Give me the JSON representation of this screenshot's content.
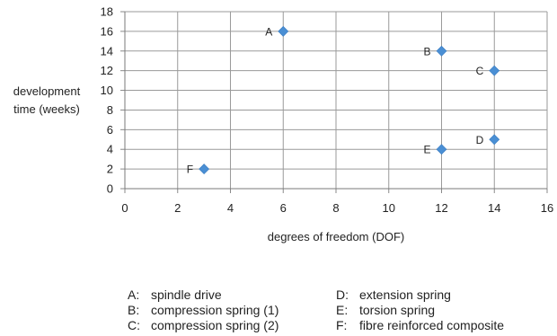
{
  "chart_data": {
    "type": "scatter",
    "title": "",
    "xlabel": "degrees of freedom (DOF)",
    "ylabel": [
      "development",
      "time (weeks)"
    ],
    "xlim": [
      0,
      16
    ],
    "ylim": [
      0,
      18
    ],
    "xticks": [
      0,
      2,
      4,
      6,
      8,
      10,
      12,
      14,
      16
    ],
    "yticks": [
      0,
      2,
      4,
      6,
      8,
      10,
      12,
      14,
      16,
      18
    ],
    "grid": true,
    "marker": "diamond",
    "color": "#4a8fd4",
    "points": [
      {
        "label": "A",
        "x": 6,
        "y": 16
      },
      {
        "label": "B",
        "x": 12,
        "y": 14
      },
      {
        "label": "C",
        "x": 14,
        "y": 12
      },
      {
        "label": "D",
        "x": 14,
        "y": 5
      },
      {
        "label": "E",
        "x": 12,
        "y": 4
      },
      {
        "label": "F",
        "x": 3,
        "y": 2
      }
    ]
  },
  "legend": {
    "left": [
      {
        "key": "A:",
        "text": "spindle drive"
      },
      {
        "key": "B:",
        "text": "compression spring (1)"
      },
      {
        "key": "C:",
        "text": "compression spring (2)"
      }
    ],
    "right": [
      {
        "key": "D:",
        "text": "extension spring"
      },
      {
        "key": "E:",
        "text": "torsion spring"
      },
      {
        "key": "F:",
        "text": "fibre reinforced composite"
      }
    ]
  }
}
